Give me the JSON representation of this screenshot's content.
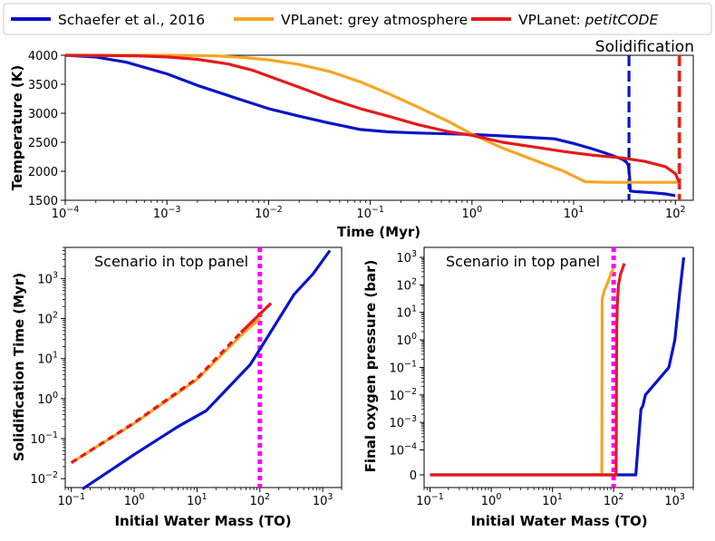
{
  "legend": [
    {
      "label": "Schaefer et al., 2016",
      "color": "#0a14c8"
    },
    {
      "label": "VPLanet: grey atmosphere",
      "color": "#f5a623"
    },
    {
      "label_prefix": "VPLanet: ",
      "label_italic": "petitCODE",
      "color": "#e41a1c"
    }
  ],
  "colors": {
    "blue": "#0a14c8",
    "orange": "#f5a623",
    "red": "#e41a1c",
    "magenta": "#ff00ff"
  },
  "chart_data": [
    {
      "type": "line",
      "panel": "top",
      "xlabel": "Time (Myr)",
      "ylabel": "Temperature (K)",
      "xscale": "log",
      "xlim": [
        0.0001,
        150
      ],
      "ylim": [
        1500,
        4000
      ],
      "yticks": [
        1500,
        2000,
        2500,
        3000,
        3500,
        4000
      ],
      "ytick_labels": [
        "1500",
        "2000",
        "2500",
        "3000",
        "3500",
        "4000"
      ],
      "xtick_labels": [
        {
          "base": "10",
          "exp": "−4"
        },
        {
          "base": "10",
          "exp": "−3"
        },
        {
          "base": "10",
          "exp": "−2"
        },
        {
          "base": "10",
          "exp": "−1"
        },
        {
          "base": "10",
          "exp": "0"
        },
        {
          "base": "10",
          "exp": "1"
        },
        {
          "base": "10",
          "exp": "2"
        }
      ],
      "annotation": "Solidification",
      "series": [
        {
          "name": "Schaefer et al., 2016",
          "color": "blue",
          "x": [
            0.0001,
            0.0002,
            0.0004,
            0.001,
            0.002,
            0.005,
            0.01,
            0.02,
            0.04,
            0.08,
            0.15,
            0.3,
            0.6,
            1,
            2,
            4,
            6.5,
            10,
            15,
            20,
            25,
            30,
            33,
            34.5,
            35.5,
            36,
            40,
            60,
            80,
            100
          ],
          "y": [
            4000,
            3970,
            3880,
            3680,
            3480,
            3250,
            3080,
            2950,
            2830,
            2720,
            2680,
            2660,
            2645,
            2635,
            2610,
            2580,
            2560,
            2480,
            2390,
            2320,
            2260,
            2210,
            2160,
            2100,
            1900,
            1660,
            1650,
            1630,
            1610,
            1580
          ]
        },
        {
          "name": "VPLanet: grey atmosphere",
          "color": "orange",
          "x": [
            0.0001,
            0.001,
            0.003,
            0.006,
            0.01,
            0.02,
            0.04,
            0.08,
            0.15,
            0.3,
            0.6,
            1,
            2,
            4,
            8,
            13,
            20,
            50,
            100,
            110
          ],
          "y": [
            4000,
            4000,
            3990,
            3960,
            3920,
            3840,
            3720,
            3540,
            3340,
            3100,
            2850,
            2640,
            2400,
            2200,
            2000,
            1820,
            1810,
            1810,
            1810,
            1810
          ]
        },
        {
          "name": "VPLanet: petitCODE",
          "color": "red",
          "x": [
            0.0001,
            0.0005,
            0.001,
            0.002,
            0.004,
            0.007,
            0.01,
            0.02,
            0.04,
            0.08,
            0.15,
            0.3,
            0.6,
            1,
            2,
            4,
            8,
            15,
            30,
            50,
            80,
            100,
            110
          ],
          "y": [
            4000,
            3990,
            3970,
            3930,
            3850,
            3740,
            3640,
            3450,
            3250,
            3080,
            2950,
            2800,
            2680,
            2620,
            2500,
            2420,
            2340,
            2280,
            2230,
            2170,
            2080,
            1960,
            1800
          ]
        }
      ],
      "vlines": [
        {
          "x": 35,
          "color": "blue",
          "style": "dashed"
        },
        {
          "x": 108,
          "color": "orange",
          "style": "dashed"
        },
        {
          "x": 110,
          "color": "red",
          "style": "dashed"
        }
      ]
    },
    {
      "type": "line",
      "panel": "bottom-left",
      "xlabel": "Initial Water Mass (TO)",
      "ylabel": "Solidification Time (Myr)",
      "xscale": "log",
      "yscale": "log",
      "xlim": [
        0.08,
        2000
      ],
      "ylim": [
        0.006,
        6000
      ],
      "xtick_labels": [
        {
          "base": "10",
          "exp": "−1"
        },
        {
          "base": "10",
          "exp": "0"
        },
        {
          "base": "10",
          "exp": "1"
        },
        {
          "base": "10",
          "exp": "2"
        },
        {
          "base": "10",
          "exp": "3"
        }
      ],
      "ytick_labels": [
        {
          "base": "10",
          "exp": "−2"
        },
        {
          "base": "10",
          "exp": "−1"
        },
        {
          "base": "10",
          "exp": "0"
        },
        {
          "base": "10",
          "exp": "1"
        },
        {
          "base": "10",
          "exp": "2"
        },
        {
          "base": "10",
          "exp": "3"
        }
      ],
      "annotation": "Scenario in top panel",
      "vline": {
        "x": 100,
        "color": "magenta",
        "style": "dotted"
      },
      "series": [
        {
          "name": "Schaefer et al., 2016",
          "color": "blue",
          "x": [
            0.15,
            1,
            5,
            14,
            70,
            100,
            350,
            700,
            1300
          ],
          "y": [
            0.0055,
            0.04,
            0.2,
            0.5,
            7,
            17,
            400,
            1300,
            5000
          ]
        },
        {
          "name": "VPLanet: grey atmosphere",
          "color": "orange",
          "x": [
            0.1,
            1,
            10,
            50,
            100
          ],
          "y": [
            0.025,
            0.24,
            3,
            38,
            100
          ]
        },
        {
          "name": "VPLanet: petitCODE",
          "color": "red",
          "x": [
            0.1,
            1,
            10,
            50,
            100,
            150
          ],
          "y": [
            0.025,
            0.25,
            3.2,
            45,
            130,
            240
          ]
        }
      ]
    },
    {
      "type": "line",
      "panel": "bottom-right",
      "xlabel": "Initial Water Mass (TO)",
      "ylabel": "Final oxygen pressure (bar)",
      "xscale": "log",
      "yscale": "symlog",
      "xlim": [
        0.08,
        2000
      ],
      "ylim": [
        -2e-05,
        2000
      ],
      "xtick_labels": [
        {
          "base": "10",
          "exp": "−1"
        },
        {
          "base": "10",
          "exp": "0"
        },
        {
          "base": "10",
          "exp": "1"
        },
        {
          "base": "10",
          "exp": "2"
        },
        {
          "base": "10",
          "exp": "3"
        }
      ],
      "ytick_labels": [
        {
          "base": "0",
          "exp": ""
        },
        {
          "base": "10",
          "exp": "−4"
        },
        {
          "base": "10",
          "exp": "−3"
        },
        {
          "base": "10",
          "exp": "−2"
        },
        {
          "base": "10",
          "exp": "−1"
        },
        {
          "base": "10",
          "exp": "0"
        },
        {
          "base": "10",
          "exp": "1"
        },
        {
          "base": "10",
          "exp": "2"
        },
        {
          "base": "10",
          "exp": "3"
        }
      ],
      "annotation": "Scenario in top panel",
      "vline": {
        "x": 100,
        "color": "magenta",
        "style": "dotted"
      },
      "series": [
        {
          "name": "Schaefer et al., 2016",
          "color": "blue",
          "x": [
            0.1,
            100,
            230,
            280,
            300,
            330,
            800,
            1000,
            1200,
            1400
          ],
          "y": [
            0,
            0,
            1e-08,
            0.003,
            0.004,
            0.01,
            0.1,
            1,
            50,
            1000
          ]
        },
        {
          "name": "VPLanet: grey atmosphere",
          "color": "orange",
          "x": [
            0.1,
            64,
            65,
            70,
            80,
            90,
            100
          ],
          "y": [
            0,
            0,
            30,
            60,
            120,
            250,
            400
          ]
        },
        {
          "name": "VPLanet: petitCODE",
          "color": "red",
          "x": [
            0.1,
            110,
            112,
            115,
            120,
            130,
            150
          ],
          "y": [
            0,
            0,
            2,
            20,
            100,
            250,
            600
          ]
        }
      ]
    }
  ]
}
